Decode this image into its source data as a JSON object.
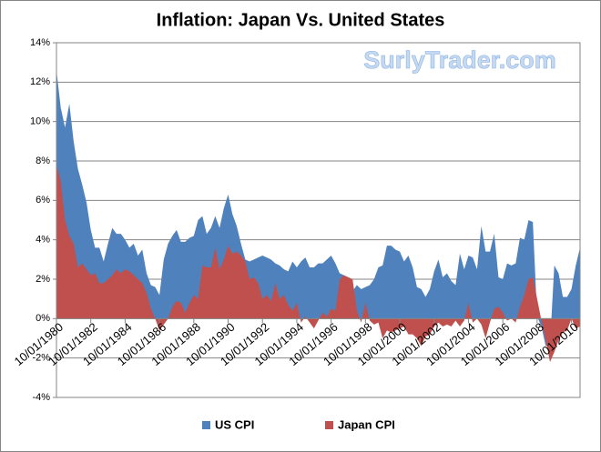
{
  "chart_data": {
    "type": "area",
    "title": "Inflation: Japan Vs. United States",
    "watermark": "SurlyTrader.com",
    "x": [
      "10/01/1980",
      "01/01/1981",
      "04/01/1981",
      "07/01/1981",
      "10/01/1981",
      "01/01/1982",
      "04/01/1982",
      "07/01/1982",
      "10/01/1982",
      "01/01/1983",
      "04/01/1983",
      "07/01/1983",
      "10/01/1983",
      "01/01/1984",
      "04/01/1984",
      "07/01/1984",
      "10/01/1984",
      "01/01/1985",
      "04/01/1985",
      "07/01/1985",
      "10/01/1985",
      "01/01/1986",
      "04/01/1986",
      "07/01/1986",
      "10/01/1986",
      "01/01/1987",
      "04/01/1987",
      "07/01/1987",
      "10/01/1987",
      "01/01/1988",
      "04/01/1988",
      "07/01/1988",
      "10/01/1988",
      "01/01/1989",
      "04/01/1989",
      "07/01/1989",
      "10/01/1989",
      "01/01/1990",
      "04/01/1990",
      "07/01/1990",
      "10/01/1990",
      "01/01/1991",
      "04/01/1991",
      "07/01/1991",
      "10/01/1991",
      "01/01/1992",
      "04/01/1992",
      "07/01/1992",
      "10/01/1992",
      "01/01/1993",
      "04/01/1993",
      "07/01/1993",
      "10/01/1993",
      "01/01/1994",
      "04/01/1994",
      "07/01/1994",
      "10/01/1994",
      "01/01/1995",
      "04/01/1995",
      "07/01/1995",
      "10/01/1995",
      "01/01/1996",
      "04/01/1996",
      "07/01/1996",
      "10/01/1996",
      "01/01/1997",
      "04/01/1997",
      "07/01/1997",
      "10/01/1997",
      "01/01/1998",
      "04/01/1998",
      "07/01/1998",
      "10/01/1998",
      "01/01/1999",
      "04/01/1999",
      "07/01/1999",
      "10/01/1999",
      "01/01/2000",
      "04/01/2000",
      "07/01/2000",
      "10/01/2000",
      "01/01/2001",
      "04/01/2001",
      "07/01/2001",
      "10/01/2001",
      "01/01/2002",
      "04/01/2002",
      "07/01/2002",
      "10/01/2002",
      "01/01/2003",
      "04/01/2003",
      "07/01/2003",
      "10/01/2003",
      "01/01/2004",
      "04/01/2004",
      "07/01/2004",
      "10/01/2004",
      "01/01/2005",
      "04/01/2005",
      "07/01/2005",
      "10/01/2005",
      "01/01/2006",
      "04/01/2006",
      "07/01/2006",
      "10/01/2006",
      "01/01/2007",
      "04/01/2007",
      "07/01/2007",
      "10/01/2007",
      "01/01/2008",
      "04/01/2008",
      "07/01/2008",
      "10/01/2008",
      "01/01/2009",
      "04/01/2009",
      "07/01/2009",
      "10/01/2009",
      "01/01/2010",
      "04/01/2010",
      "07/01/2010",
      "10/01/2010",
      "01/01/2011",
      "04/01/2011"
    ],
    "xticks": [
      "10/01/1980",
      "10/01/1982",
      "10/01/1984",
      "10/01/1986",
      "10/01/1988",
      "10/01/1990",
      "10/01/1992",
      "10/01/1994",
      "10/01/1996",
      "10/01/1998",
      "10/01/2000",
      "10/01/2002",
      "10/01/2004",
      "10/01/2006",
      "10/01/2008",
      "10/01/2010"
    ],
    "series": [
      {
        "name": "US CPI",
        "color": "#4f81bd",
        "values": [
          12.6,
          10.7,
          9.7,
          10.9,
          9.0,
          7.6,
          6.8,
          5.9,
          4.5,
          3.6,
          3.6,
          2.9,
          3.8,
          4.6,
          4.3,
          4.3,
          4.0,
          3.6,
          3.8,
          3.2,
          3.5,
          2.3,
          1.7,
          1.6,
          1.2,
          3.0,
          3.8,
          4.2,
          4.5,
          3.9,
          3.9,
          4.1,
          4.2,
          5.0,
          5.2,
          4.3,
          4.6,
          5.2,
          4.6,
          5.6,
          6.3,
          5.3,
          4.7,
          3.8,
          3.0,
          2.9,
          3.0,
          3.1,
          3.2,
          3.1,
          3.0,
          2.8,
          2.7,
          2.5,
          2.4,
          2.9,
          2.6,
          2.9,
          3.1,
          2.6,
          2.6,
          2.8,
          2.8,
          3.0,
          3.2,
          2.8,
          2.3,
          2.2,
          1.8,
          1.4,
          1.7,
          1.5,
          1.6,
          1.7,
          2.0,
          2.6,
          2.7,
          3.7,
          3.7,
          3.5,
          3.4,
          2.9,
          3.2,
          2.6,
          1.6,
          1.5,
          1.1,
          1.5,
          2.4,
          3.0,
          2.1,
          2.3,
          1.9,
          1.7,
          3.3,
          2.5,
          3.2,
          3.1,
          2.5,
          4.7,
          3.4,
          3.4,
          4.3,
          2.1,
          2.0,
          2.8,
          2.7,
          2.8,
          4.1,
          4.0,
          5.0,
          4.9,
          0.1,
          -0.4,
          -1.4,
          -1.3,
          2.7,
          2.3,
          1.1,
          1.1,
          1.5,
          2.7,
          3.6
        ]
      },
      {
        "name": "Japan CPI",
        "color": "#c0504d",
        "values": [
          7.8,
          7.0,
          5.0,
          4.2,
          3.8,
          2.6,
          2.8,
          2.5,
          2.2,
          2.3,
          1.8,
          1.8,
          2.0,
          2.2,
          2.5,
          2.3,
          2.5,
          2.4,
          2.2,
          2.0,
          1.8,
          1.3,
          0.5,
          0.0,
          -0.6,
          -0.3,
          0.0,
          0.6,
          0.9,
          0.8,
          0.3,
          0.8,
          1.2,
          1.0,
          2.7,
          2.6,
          2.6,
          3.6,
          2.5,
          3.0,
          3.7,
          3.3,
          3.4,
          3.2,
          2.9,
          2.0,
          2.1,
          1.8,
          1.0,
          1.2,
          0.9,
          1.8,
          1.0,
          1.2,
          0.7,
          0.4,
          0.8,
          -0.2,
          0.1,
          -0.2,
          -0.5,
          -0.1,
          0.3,
          0.1,
          0.5,
          0.4,
          2.0,
          2.2,
          2.1,
          2.0,
          0.4,
          -0.2,
          0.8,
          -0.1,
          -0.3,
          -0.2,
          -1.0,
          -0.6,
          -0.7,
          -0.6,
          -0.5,
          -0.4,
          -0.8,
          -0.8,
          -1.0,
          -1.4,
          -0.9,
          -0.8,
          -0.4,
          -0.2,
          -0.4,
          -0.3,
          -0.4,
          -0.1,
          -0.4,
          -0.1,
          0.8,
          -0.2,
          0.0,
          -0.3,
          -1.0,
          -0.2,
          0.5,
          0.6,
          0.3,
          -0.1,
          0.0,
          -0.2,
          0.6,
          1.2,
          2.0,
          2.1,
          1.0,
          -0.1,
          -1.1,
          -2.2,
          -1.7,
          -1.1,
          -0.7,
          -0.6,
          0.0,
          -0.5,
          -0.4
        ]
      }
    ],
    "ylim": [
      -4,
      14
    ],
    "yticks": [
      {
        "value": -4,
        "label": "-4%"
      },
      {
        "value": -2,
        "label": "-2%"
      },
      {
        "value": 0,
        "label": "0%"
      },
      {
        "value": 2,
        "label": "2%"
      },
      {
        "value": 4,
        "label": "4%"
      },
      {
        "value": 6,
        "label": "6%"
      },
      {
        "value": 8,
        "label": "8%"
      },
      {
        "value": 10,
        "label": "10%"
      },
      {
        "value": 12,
        "label": "12%"
      },
      {
        "value": 14,
        "label": "14%"
      }
    ],
    "grid": true,
    "legend": "bottom"
  }
}
